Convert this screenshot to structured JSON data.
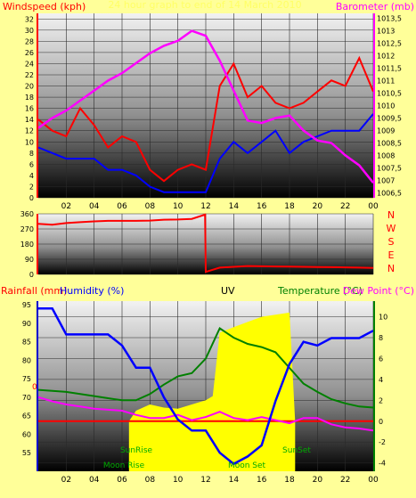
{
  "chart_data": [
    {
      "type": "line",
      "panel": "wind-and-pressure",
      "title": "24 hour graph to end of 14 March 2010",
      "ylabel_left": "Windspeed (kph)",
      "ylabel_right": "Barometer (mb)",
      "x_ticks": [
        "02",
        "04",
        "06",
        "08",
        "10",
        "12",
        "14",
        "16",
        "18",
        "20",
        "22",
        "00"
      ],
      "ylim_left": [
        0,
        33
      ],
      "yticks_left": [
        0,
        2,
        4,
        6,
        8,
        10,
        12,
        14,
        16,
        18,
        20,
        22,
        24,
        26,
        28,
        30,
        32
      ],
      "ylim_right": [
        1006.3,
        1013.7
      ],
      "yticks_right": [
        "1006,5",
        "1007",
        "1007,5",
        "1008",
        "1008,5",
        "1009",
        "1009,5",
        "1010",
        "1010,5",
        "1011",
        "1011,5",
        "1012",
        "1012,5",
        "1013",
        "1013,5"
      ],
      "yticks_right_values": [
        1006.5,
        1007,
        1007.5,
        1008,
        1008.5,
        1009,
        1009.5,
        1010,
        1010.5,
        1011,
        1011.5,
        1012,
        1012.5,
        1013,
        1013.5
      ],
      "grid": true,
      "series": [
        {
          "name": "Windspeed (kph)",
          "color": "#ff0000",
          "x": [
            0,
            1,
            2,
            3,
            4,
            5,
            6,
            7,
            8,
            9,
            10,
            11,
            12,
            13,
            14,
            15,
            16,
            17,
            18,
            19,
            20,
            21,
            22,
            23,
            24
          ],
          "y": [
            14,
            12,
            11,
            16,
            13,
            9,
            11,
            10,
            5,
            3,
            5,
            6,
            5,
            20,
            24,
            18,
            20,
            17,
            16,
            17,
            19,
            21,
            20,
            25,
            19
          ]
        },
        {
          "name": "Wind average",
          "color": "#0000ff",
          "x": [
            0,
            1,
            2,
            3,
            4,
            5,
            6,
            7,
            8,
            9,
            10,
            11,
            12,
            13,
            14,
            15,
            16,
            17,
            18,
            19,
            20,
            21,
            22,
            23,
            24
          ],
          "y": [
            9,
            8,
            7,
            7,
            7,
            5,
            5,
            4,
            2,
            1,
            1,
            1,
            1,
            7,
            10,
            8,
            10,
            12,
            8,
            10,
            11,
            12,
            12,
            12,
            15
          ]
        },
        {
          "name": "Barometer (mb)",
          "color": "#ff00ff",
          "x": [
            0,
            1,
            2,
            3,
            4,
            5,
            6,
            7,
            8,
            9,
            10,
            11,
            12,
            13,
            14,
            15,
            16,
            17,
            18,
            19,
            20,
            21,
            22,
            23,
            24
          ],
          "y": [
            1009.1,
            1009.5,
            1009.8,
            1010.2,
            1010.6,
            1011.0,
            1011.3,
            1011.7,
            1012.1,
            1012.4,
            1012.6,
            1013.0,
            1012.8,
            1011.8,
            1010.6,
            1009.4,
            1009.3,
            1009.5,
            1009.6,
            1009.0,
            1008.6,
            1008.5,
            1008.0,
            1007.6,
            1006.9
          ]
        }
      ]
    },
    {
      "type": "line",
      "panel": "wind-direction",
      "y_categories": [
        "N",
        "W",
        "S",
        "E",
        "N"
      ],
      "ylim": [
        0,
        360
      ],
      "yticks": [
        0,
        90,
        180,
        270,
        360
      ],
      "x": [
        0,
        1,
        2,
        3,
        4,
        5,
        6,
        7,
        8,
        9,
        10,
        11,
        11.95,
        12,
        13,
        14,
        15,
        16,
        17,
        18,
        19,
        20,
        21,
        22,
        23,
        24
      ],
      "series": [
        {
          "name": "Wind direction",
          "color": "#ff0000",
          "y": [
            300,
            295,
            305,
            310,
            315,
            318,
            318,
            318,
            320,
            325,
            326,
            330,
            355,
            15,
            40,
            45,
            50,
            48,
            47,
            46,
            45,
            44,
            43,
            42,
            40,
            38
          ]
        }
      ]
    },
    {
      "type": "line",
      "panel": "temperature-humidity-rain-uv",
      "labels": {
        "rainfall": "Rainfall (mm)",
        "humidity": "Humidity (%)",
        "uv": "UV",
        "temperature": "Temperature (°C)",
        "dewpoint": "Dew Point (°C)"
      },
      "markers": [
        "SunRise",
        "SunSet",
        "Moon Rise",
        "Moon Set"
      ],
      "rain_zero_label": "0",
      "ylim_left": [
        50,
        96
      ],
      "yticks_left": [
        55,
        60,
        65,
        70,
        75,
        80,
        85,
        90,
        95
      ],
      "ylim_right": [
        -4.8,
        11.5
      ],
      "yticks_right": [
        -4,
        -2,
        0,
        2,
        4,
        6,
        8,
        10
      ],
      "series": [
        {
          "name": "Humidity (%)",
          "color": "#0000ff",
          "x": [
            0,
            1,
            2,
            3,
            4,
            5,
            6,
            7,
            8,
            9,
            10,
            11,
            12,
            13,
            14,
            15,
            16,
            17,
            18,
            19,
            20,
            21,
            22,
            23,
            24
          ],
          "y": [
            94,
            94,
            87,
            87,
            87,
            87,
            84,
            78,
            78,
            70,
            64,
            61,
            61,
            55,
            52,
            54,
            57,
            69,
            79,
            85,
            84,
            86,
            86,
            86,
            88
          ]
        },
        {
          "name": "Temperature (°C)",
          "color": "#008000",
          "x": [
            0,
            1,
            2,
            3,
            4,
            5,
            6,
            7,
            8,
            9,
            10,
            11,
            12,
            13,
            14,
            15,
            16,
            17,
            18,
            19,
            20,
            21,
            22,
            23,
            24
          ],
          "y": [
            3,
            2.9,
            2.8,
            2.6,
            2.4,
            2.2,
            2.0,
            2.0,
            2.6,
            3.5,
            4.3,
            4.6,
            6,
            8.9,
            8,
            7.4,
            7.1,
            6.6,
            5.1,
            3.6,
            2.8,
            2.1,
            1.7,
            1.4,
            1.3
          ]
        },
        {
          "name": "Dew Point (°C)",
          "color": "#ff00ff",
          "x": [
            0,
            1,
            2,
            3,
            4,
            5,
            6,
            7,
            8,
            9,
            10,
            11,
            12,
            13,
            14,
            15,
            16,
            17,
            18,
            19,
            20,
            21,
            22,
            23,
            24
          ],
          "y": [
            2.3,
            1.9,
            1.6,
            1.4,
            1.2,
            1.1,
            1.0,
            0.6,
            0.3,
            0.3,
            0.6,
            0.1,
            0.4,
            0.9,
            0.3,
            0.1,
            0.4,
            0.1,
            -0.2,
            0.3,
            0.3,
            -0.3,
            -0.6,
            -0.7,
            -0.9
          ]
        },
        {
          "name": "UV",
          "color": "#ffff00",
          "x": [
            6.5,
            7,
            8,
            9,
            10,
            11,
            12,
            12.5,
            13,
            14,
            15,
            16,
            17,
            18,
            18.4
          ],
          "y": [
            0,
            1,
            1.6,
            1.3,
            1.2,
            1.6,
            2.0,
            2.4,
            8.5,
            9.0,
            9.5,
            10.0,
            10.2,
            10.4,
            0
          ]
        },
        {
          "name": "Rainfall (mm)",
          "color": "#ff0000",
          "x": [
            0,
            24
          ],
          "y": [
            0,
            0
          ]
        }
      ]
    }
  ],
  "colors": {
    "page_bg": "#ffff99",
    "label_red": "#ff0000",
    "label_magenta": "#ff00ff",
    "label_blue": "#0000ff",
    "label_green": "#008000",
    "marker_green": "#00aa00",
    "axis_blue": "#0000cc",
    "uv_yellow": "#ffff00"
  }
}
